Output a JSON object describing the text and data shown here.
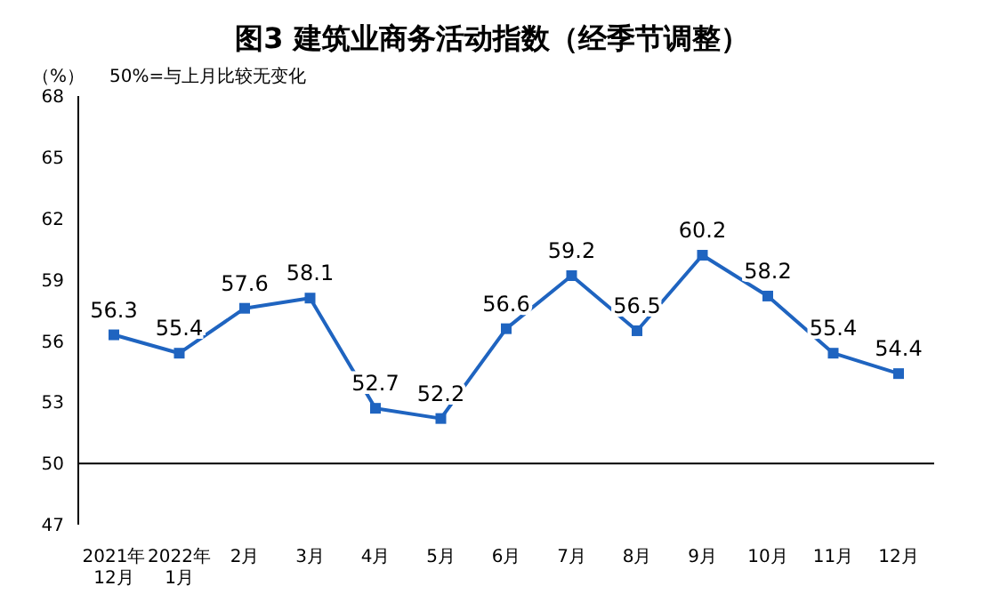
{
  "chart_data": {
    "type": "line",
    "title": "图3  建筑业商务活动指数（经季节调整）",
    "ylabel": "（%）",
    "annotations": [
      "50%=与上月比较无变化"
    ],
    "categories": [
      "2021年\n12月",
      "2022年\n1月",
      "2月",
      "3月",
      "4月",
      "5月",
      "6月",
      "7月",
      "8月",
      "9月",
      "10月",
      "11月",
      "12月"
    ],
    "series": [
      {
        "color": "#1f64c0",
        "values": [
          56.3,
          55.4,
          57.6,
          58.1,
          52.7,
          52.2,
          56.6,
          59.2,
          56.5,
          60.2,
          58.2,
          55.4,
          54.4
        ]
      }
    ],
    "ylim": [
      47,
      68
    ],
    "yticks": [
      47,
      50,
      53,
      56,
      59,
      62,
      65,
      68
    ],
    "ref_lines": [
      {
        "axis": "y",
        "value": 50,
        "color": "#000000"
      }
    ],
    "marker": "square",
    "line_style": "solid",
    "data_labels": true,
    "grid": false,
    "legend": false
  }
}
